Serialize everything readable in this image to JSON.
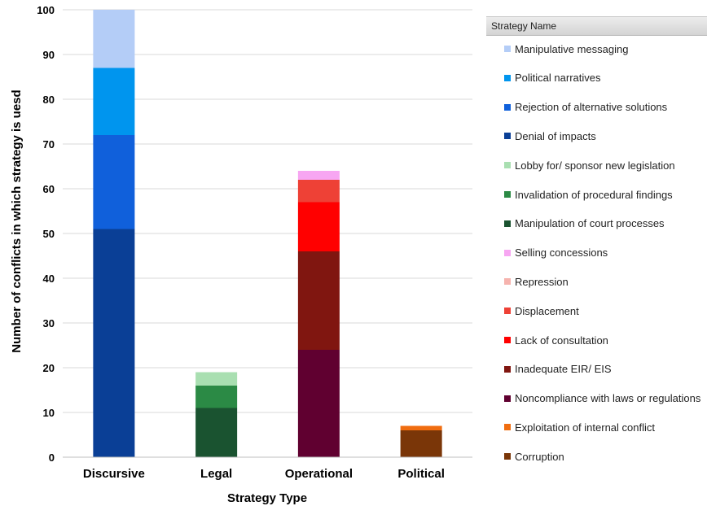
{
  "chart_data": {
    "type": "bar",
    "stacked": true,
    "categories": [
      "Discursive",
      "Legal",
      "Operational",
      "Political"
    ],
    "xlabel": "Strategy  Type",
    "ylabel": "Number of conflicts in which strategy is uesd",
    "ylim": [
      0,
      100
    ],
    "yticks": [
      0,
      10,
      20,
      30,
      40,
      50,
      60,
      70,
      80,
      90,
      100
    ],
    "grid": true,
    "legend_title": "Strategy Name",
    "legend_position": "right",
    "series": [
      {
        "name": "Manipulative messaging",
        "color": "#b4cdf7",
        "values": [
          13,
          0,
          0,
          0
        ]
      },
      {
        "name": "Political narratives",
        "color": "#0095ee",
        "values": [
          15,
          0,
          0,
          0
        ]
      },
      {
        "name": "Rejection of alternative solutions",
        "color": "#1060db",
        "values": [
          21,
          0,
          0,
          0
        ]
      },
      {
        "name": "Denial of impacts",
        "color": "#0a3f96",
        "values": [
          51,
          0,
          0,
          0
        ]
      },
      {
        "name": "Lobby for/ sponsor new legislation",
        "color": "#a9dfb1",
        "values": [
          0,
          3,
          0,
          0
        ]
      },
      {
        "name": "Invalidation of procedural findings",
        "color": "#2b8a45",
        "values": [
          0,
          5,
          0,
          0
        ]
      },
      {
        "name": "Manipulation of court processes",
        "color": "#1a5330",
        "values": [
          0,
          11,
          0,
          0
        ]
      },
      {
        "name": "Selling concessions",
        "color": "#f7a6f2",
        "values": [
          0,
          0,
          2,
          0
        ]
      },
      {
        "name": "Repression",
        "color": "#f6b3ae",
        "values": [
          0,
          0,
          0,
          0
        ]
      },
      {
        "name": "Displacement",
        "color": "#ee4136",
        "values": [
          0,
          0,
          5,
          0
        ]
      },
      {
        "name": "Lack of consultation",
        "color": "#ff0000",
        "values": [
          0,
          0,
          11,
          0
        ]
      },
      {
        "name": "Inadequate EIR/ EIS",
        "color": "#801610",
        "values": [
          0,
          0,
          22,
          0
        ]
      },
      {
        "name": "Noncompliance with laws or regulations",
        "color": "#600030",
        "values": [
          0,
          0,
          24,
          0
        ]
      },
      {
        "name": "Exploitation of internal conflict",
        "color": "#f06d10",
        "values": [
          0,
          0,
          0,
          1
        ]
      },
      {
        "name": "Corruption",
        "color": "#7a3608",
        "values": [
          0,
          0,
          0,
          6
        ]
      }
    ]
  }
}
